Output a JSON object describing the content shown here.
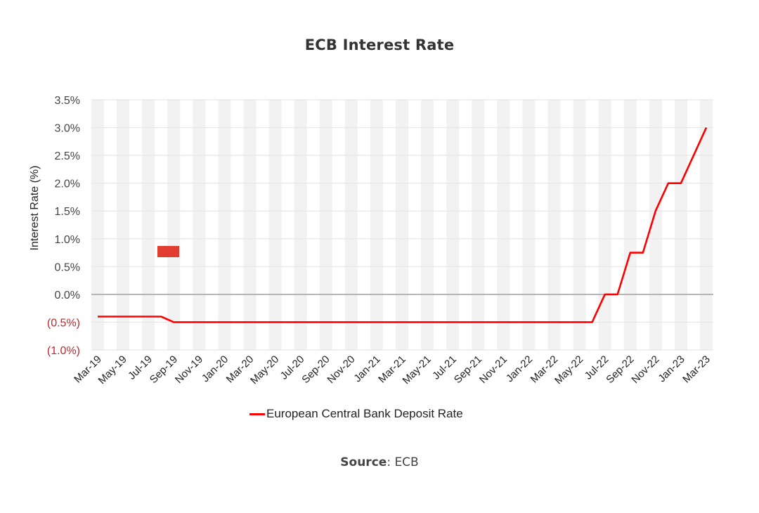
{
  "title": "ECB Interest Rate",
  "source": {
    "label": "Source",
    "value": ": ECB"
  },
  "legend": {
    "label": "European Central Bank Deposit Rate"
  },
  "colors": {
    "series": "#ff0000",
    "negative_tick": "#c0272d",
    "stripe": "#f2f2f2",
    "zero_line": "#a6a6a6",
    "grid": "#e6e6e6",
    "marker": "#e03c31"
  },
  "chart_data": {
    "type": "line",
    "title": "ECB Interest Rate",
    "xlabel": "",
    "ylabel": "Interest Rate (%)",
    "ylim": [
      -1.0,
      3.5
    ],
    "y_ticks": [
      "3.5%",
      "3.0%",
      "2.5%",
      "2.0%",
      "1.5%",
      "1.0%",
      "0.5%",
      "0.0%",
      "(0.5%)",
      "(1.0%)"
    ],
    "y_tick_values": [
      3.5,
      3.0,
      2.5,
      2.0,
      1.5,
      1.0,
      0.5,
      0.0,
      -0.5,
      -1.0
    ],
    "x_tick_labels": [
      "Mar-19",
      "May-19",
      "Jul-19",
      "Sep-19",
      "Nov-19",
      "Jan-20",
      "Mar-20",
      "May-20",
      "Jul-20",
      "Sep-20",
      "Nov-20",
      "Jan-21",
      "Mar-21",
      "May-21",
      "Jul-21",
      "Sep-21",
      "Nov-21",
      "Jan-22",
      "Mar-22",
      "May-22",
      "Jul-22",
      "Sep-22",
      "Nov-22",
      "Jan-23",
      "Mar-23"
    ],
    "grid": true,
    "legend_position": "bottom",
    "x": [
      "Mar-19",
      "Apr-19",
      "May-19",
      "Jun-19",
      "Jul-19",
      "Aug-19",
      "Sep-19",
      "Oct-19",
      "Nov-19",
      "Dec-19",
      "Jan-20",
      "Feb-20",
      "Mar-20",
      "Apr-20",
      "May-20",
      "Jun-20",
      "Jul-20",
      "Aug-20",
      "Sep-20",
      "Oct-20",
      "Nov-20",
      "Dec-20",
      "Jan-21",
      "Feb-21",
      "Mar-21",
      "Apr-21",
      "May-21",
      "Jun-21",
      "Jul-21",
      "Aug-21",
      "Sep-21",
      "Oct-21",
      "Nov-21",
      "Dec-21",
      "Jan-22",
      "Feb-22",
      "Mar-22",
      "Apr-22",
      "May-22",
      "Jun-22",
      "Jul-22",
      "Aug-22",
      "Sep-22",
      "Oct-22",
      "Nov-22",
      "Dec-22",
      "Jan-23",
      "Feb-23",
      "Mar-23"
    ],
    "series": [
      {
        "name": "European Central Bank Deposit Rate",
        "values": [
          -0.4,
          -0.4,
          -0.4,
          -0.4,
          -0.4,
          -0.4,
          -0.5,
          -0.5,
          -0.5,
          -0.5,
          -0.5,
          -0.5,
          -0.5,
          -0.5,
          -0.5,
          -0.5,
          -0.5,
          -0.5,
          -0.5,
          -0.5,
          -0.5,
          -0.5,
          -0.5,
          -0.5,
          -0.5,
          -0.5,
          -0.5,
          -0.5,
          -0.5,
          -0.5,
          -0.5,
          -0.5,
          -0.5,
          -0.5,
          -0.5,
          -0.5,
          -0.5,
          -0.5,
          -0.5,
          -0.5,
          0.0,
          0.0,
          0.75,
          0.75,
          1.5,
          2.0,
          2.0,
          2.5,
          3.0
        ]
      }
    ]
  }
}
